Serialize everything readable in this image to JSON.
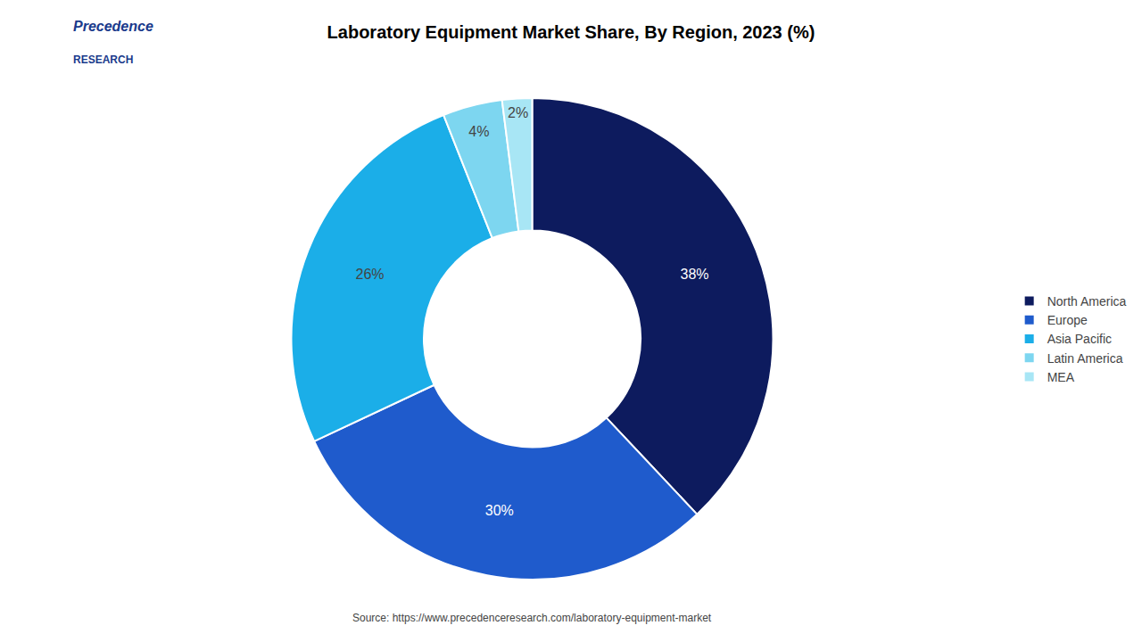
{
  "chart_data": {
    "type": "donut",
    "title": "Laboratory Equipment Market Share, By Region, 2023 (%)",
    "categories": [
      "North America",
      "Europe",
      "Asia Pacific",
      "Latin America",
      "MEA"
    ],
    "values": [
      38,
      30,
      26,
      4,
      2
    ],
    "value_labels": [
      "38%",
      "30%",
      "26%",
      "4%",
      "2%"
    ],
    "colors": [
      "#0d1b5e",
      "#1f5bcc",
      "#1baee8",
      "#7dd6f0",
      "#a8e6f5"
    ],
    "data_labels": true,
    "legend": "right",
    "annotations": [
      "Precedence",
      "RESEARCH",
      "Source: https://www.precedenceresearch.com/laboratory-equipment-market"
    ]
  }
}
